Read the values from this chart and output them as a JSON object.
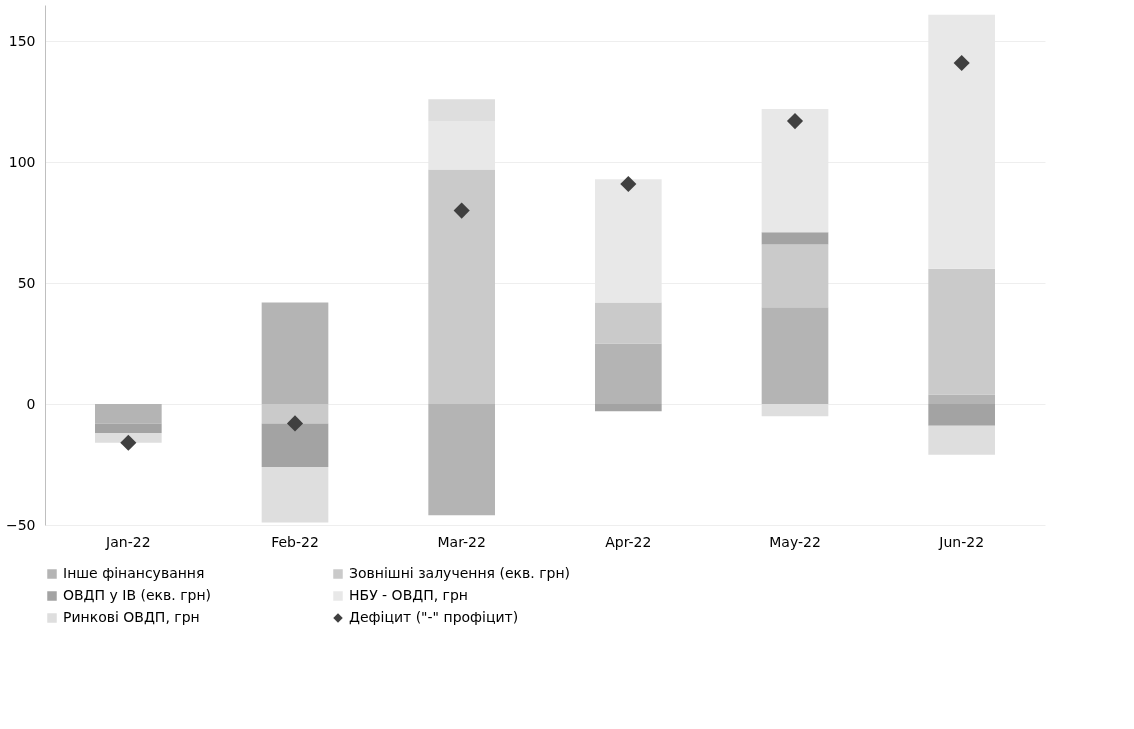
{
  "chart_data": {
    "type": "bar",
    "stacked": true,
    "categories": [
      "Jan-22",
      "Feb-22",
      "Mar-22",
      "Apr-22",
      "May-22",
      "Jun-22"
    ],
    "series": [
      {
        "name": "Інше фінансування",
        "color": "#b4b4b4",
        "values": [
          -8,
          42,
          -46,
          25,
          40,
          4
        ]
      },
      {
        "name": "Зовнішні залучення (екв. грн)",
        "color": "#cacaca",
        "values": [
          null,
          -8,
          97,
          17,
          26,
          52
        ]
      },
      {
        "name": "ОВДП у ІВ (екв. грн)",
        "color": "#a3a3a3",
        "values": [
          -4,
          -18,
          null,
          -3,
          5,
          -9
        ]
      },
      {
        "name": "НБУ - ОВДП, грн",
        "color": "#e8e8e8",
        "values": [
          null,
          null,
          20,
          51,
          51,
          105
        ]
      },
      {
        "name": "Ринкові ОВДП, грн",
        "color": "#dedede",
        "values": [
          -4,
          -23,
          9,
          null,
          -5,
          -12
        ]
      },
      {
        "name": "Дефіцит (\"-\" профіцит)",
        "type": "scatter",
        "marker": "diamond",
        "color": "#404040",
        "values": [
          -16,
          -8,
          80,
          91,
          117,
          141
        ]
      }
    ],
    "ylim": [
      -50,
      165
    ],
    "yticks": [
      -50,
      0,
      50,
      100,
      150
    ],
    "grid": "y",
    "legend": "bottom"
  }
}
